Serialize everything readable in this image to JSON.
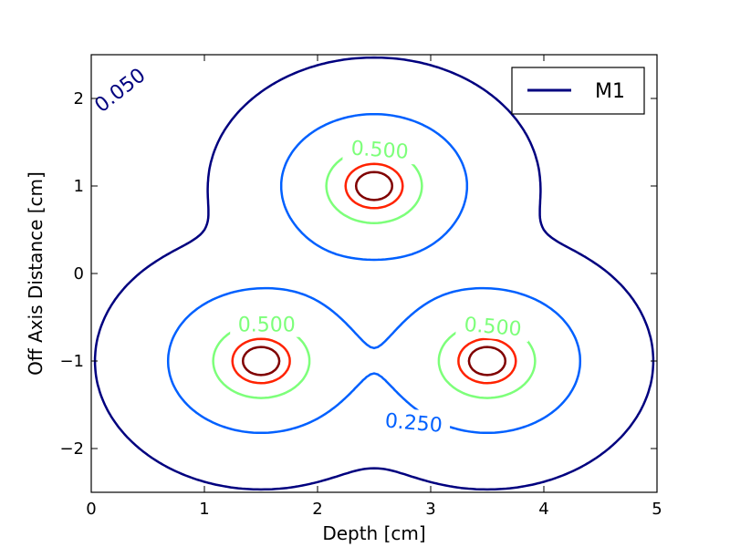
{
  "chart_data": {
    "type": "contour",
    "title": "",
    "xlabel": "Depth [cm]",
    "ylabel": "Off Axis Distance [cm]",
    "xlim": [
      0,
      5
    ],
    "ylim": [
      -2.5,
      2.5
    ],
    "x_ticks": [
      "0",
      "1",
      "2",
      "3",
      "4",
      "5"
    ],
    "y_ticks": [
      "−2",
      "−1",
      "0",
      "1",
      "2"
    ],
    "grid": false,
    "legend": {
      "location": "top-right",
      "entries": [
        {
          "label": "M1",
          "color": "#00007f"
        }
      ]
    },
    "sources": [
      [
        2.5,
        1.0
      ],
      [
        1.5,
        -1.0
      ],
      [
        3.5,
        -1.0
      ]
    ],
    "contours": [
      {
        "level": "0.050",
        "color": "#00007f",
        "labeled": true
      },
      {
        "level": "0.250",
        "color": "#0060ff",
        "labeled": true
      },
      {
        "level": "0.500",
        "color": "#7dff7a",
        "labeled": true
      },
      {
        "level": "",
        "color": "#ff2200",
        "labeled": false
      },
      {
        "level": "",
        "color": "#800000",
        "labeled": false
      }
    ]
  }
}
